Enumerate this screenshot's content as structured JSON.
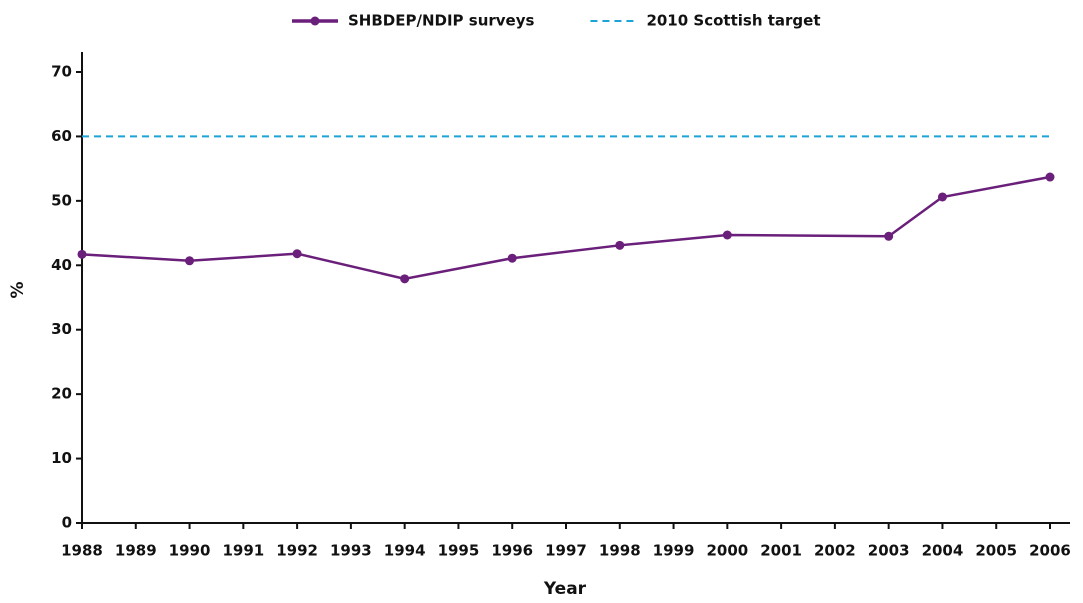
{
  "chart_data": {
    "type": "line",
    "xlabel": "Year",
    "ylabel": "%",
    "xlim": [
      1988,
      2006
    ],
    "xticks": [
      1988,
      1989,
      1990,
      1991,
      1992,
      1993,
      1994,
      1995,
      1996,
      1997,
      1998,
      1999,
      2000,
      2001,
      2002,
      2003,
      2004,
      2005,
      2006
    ],
    "ylim": [
      0,
      70
    ],
    "yticks": [
      0,
      10,
      20,
      30,
      40,
      50,
      60,
      70
    ],
    "legend": "top",
    "series": [
      {
        "name": "SHBDEP/NDIP surveys",
        "color": "#6a1f7a",
        "style": "solid",
        "markers": true,
        "x": [
          1988,
          1990,
          1992,
          1994,
          1996,
          1998,
          2000,
          2003,
          2004,
          2006
        ],
        "values": [
          41.7,
          40.7,
          41.8,
          37.9,
          41.1,
          43.1,
          44.7,
          44.5,
          50.6,
          53.7
        ]
      },
      {
        "name": "2010 Scottish target",
        "color": "#1ca3d8",
        "style": "dashed",
        "markers": false,
        "x": [
          1988,
          2006
        ],
        "values": [
          60,
          60
        ]
      }
    ]
  }
}
